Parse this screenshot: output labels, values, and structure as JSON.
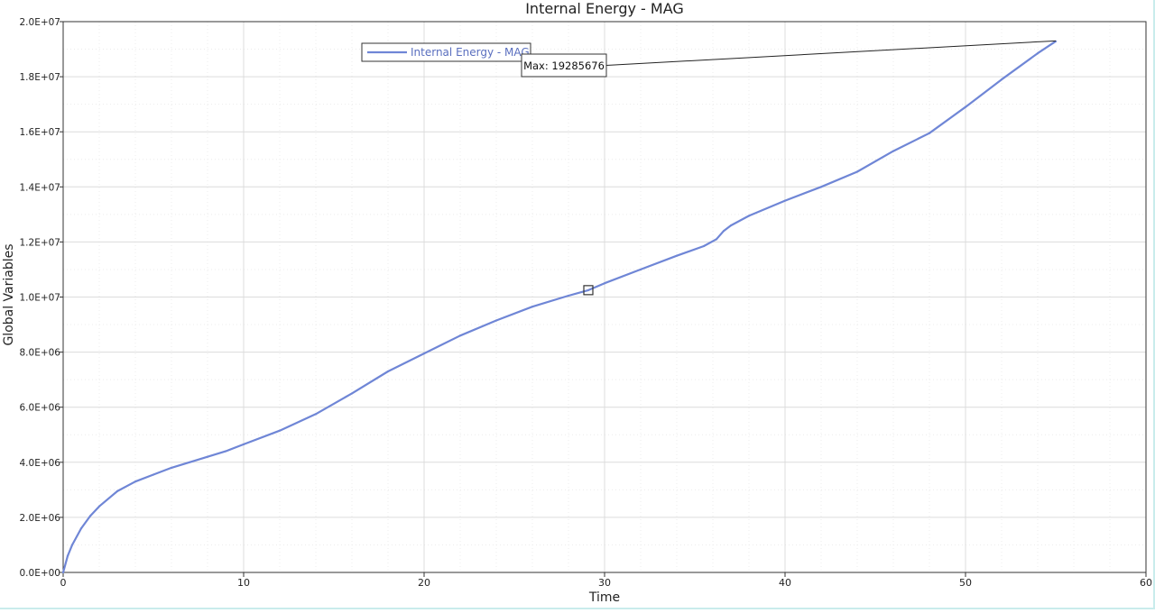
{
  "chart_data": {
    "type": "line",
    "title": "Internal Energy - MAG",
    "xlabel": "Time",
    "ylabel": "Global Variables",
    "xlim": [
      0,
      60
    ],
    "ylim": [
      0,
      20000000
    ],
    "x_ticks": [
      0,
      10,
      20,
      30,
      40,
      50,
      60
    ],
    "x_tick_labels": [
      "0",
      "10",
      "20",
      "30",
      "40",
      "50",
      "60"
    ],
    "y_ticks": [
      0,
      2000000,
      4000000,
      6000000,
      8000000,
      10000000,
      12000000,
      14000000,
      16000000,
      18000000,
      20000000
    ],
    "y_tick_labels": [
      "0.0E+00",
      "2.0E+06",
      "4.0E+06",
      "6.0E+06",
      "8.0E+06",
      "1.0E+07",
      "1.2E+07",
      "1.4E+07",
      "1.6E+07",
      "1.8E+07",
      "2.0E+07"
    ],
    "grid": true,
    "legend_position": "top-left",
    "series": [
      {
        "name": "Internal Energy - MAG",
        "color": "#6f86d6",
        "x": [
          0,
          0.25,
          0.5,
          1,
          1.5,
          2,
          3,
          4,
          5,
          6,
          7,
          8,
          9,
          10,
          12,
          14,
          16,
          18,
          20,
          22,
          24,
          26,
          28,
          29.1,
          30,
          32,
          34,
          35.5,
          36.2,
          36.6,
          37,
          38,
          40,
          42,
          44,
          46,
          48,
          50,
          52,
          54,
          55
        ],
        "y": [
          0,
          600000,
          1000000,
          1600000,
          2050000,
          2400000,
          2950000,
          3300000,
          3550000,
          3800000,
          4000000,
          4200000,
          4400000,
          4650000,
          5150000,
          5750000,
          6500000,
          7300000,
          7950000,
          8600000,
          9150000,
          9650000,
          10050000,
          10250000,
          10500000,
          11000000,
          11500000,
          11850000,
          12100000,
          12400000,
          12600000,
          12950000,
          13500000,
          14000000,
          14550000,
          15300000,
          15950000,
          16900000,
          17900000,
          18850000,
          19285676
        ]
      }
    ],
    "annotations": [
      {
        "label": "Max: 19285676",
        "x": 55,
        "y": 19285676
      }
    ],
    "marker": {
      "x": 29.1,
      "y": 10250000
    }
  }
}
